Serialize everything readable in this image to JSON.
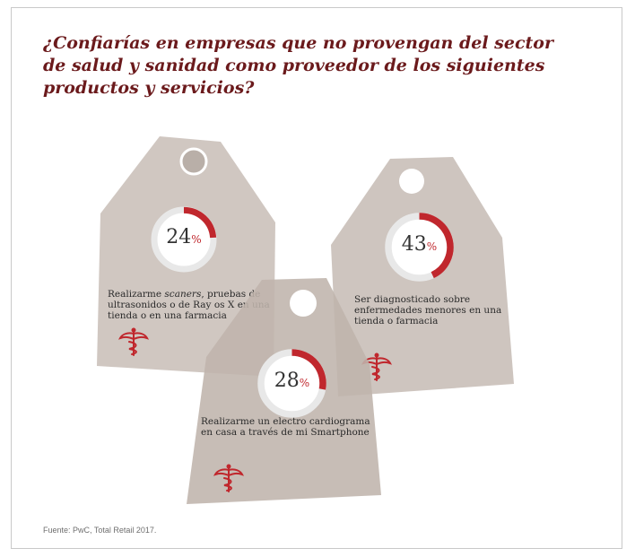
{
  "title": "¿Confiarías en empresas que no provengan del sector de salud y sanidad como proveedor de los siguientes productos y servicios?",
  "source": "Fuente: PwC, Total Retail 2017.",
  "colors": {
    "title": "#6b1a1c",
    "tag_fill": "#c9bfb8",
    "ring_track": "#e8e8e8",
    "ring_value": "#c0272d",
    "caduceus": "#c0272d"
  },
  "chart_data": {
    "type": "pie",
    "title": "¿Confiarías en empresas que no provengan del sector de salud y sanidad como proveedor de los siguientes productos y servicios?",
    "items": [
      {
        "label": "Realizarme scaners, pruebas de ultrasonidos o de Rayos X en una tienda o en una farmacia",
        "label_pre": "Realizarme ",
        "label_em": "scaners",
        "label_post": ", pruebas de ultrasonidos o de Ray os X en una tienda o en una farmacia",
        "value": 24,
        "value_text": "24",
        "unit": "%"
      },
      {
        "label": "Ser diagnosticado sobre enfermedades menores en una tienda o farmacia",
        "label_pre": "Ser diagnosticado sobre enfermedades menores en una tienda o farmacia",
        "label_em": "",
        "label_post": "",
        "value": 43,
        "value_text": "43",
        "unit": "%"
      },
      {
        "label": "Realizarme un electro cardiograma en casa a través de mi Smartphone",
        "label_pre": "Realizarme un electro cardiograma en casa a través de mi Smartphone",
        "label_em": "",
        "label_post": "",
        "value": 28,
        "value_text": "28",
        "unit": "%"
      }
    ]
  },
  "icons": {
    "caduceus": "caduceus-icon",
    "tag_hole": "tag-hole"
  }
}
